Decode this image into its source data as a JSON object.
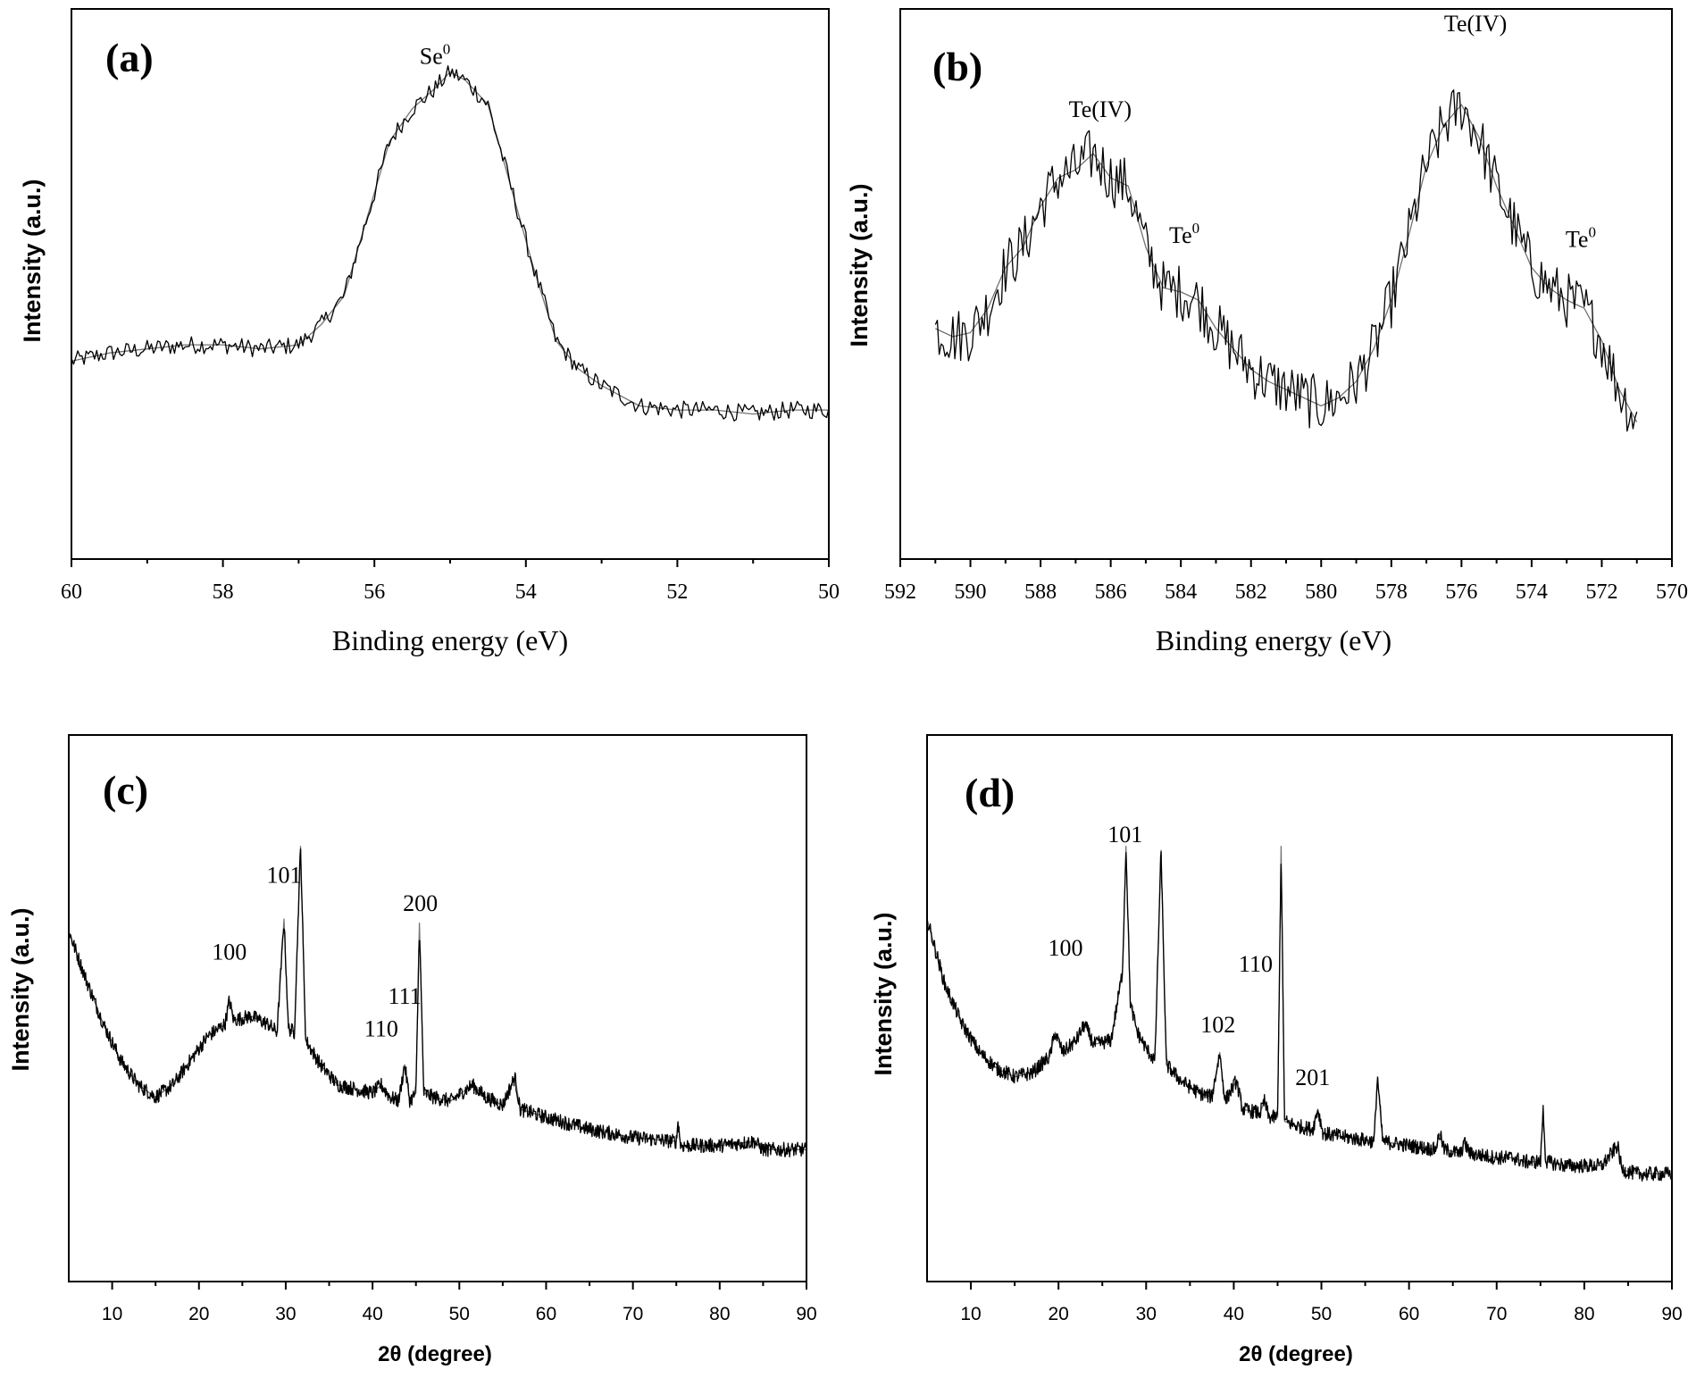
{
  "chart_data": [
    {
      "panel": "(a)",
      "type": "line",
      "xlabel": "Binding energy (eV)",
      "ylabel": "Intensity (a.u.)",
      "xlim": [
        60,
        50
      ],
      "x_reversed": true,
      "ylim": [
        0,
        100
      ],
      "y_ticks_shown": false,
      "x_ticks": [
        60,
        58,
        56,
        54,
        52,
        50
      ],
      "annotations": [
        {
          "base": "Se",
          "sup": "0",
          "x": 55.2,
          "y": 100
        }
      ],
      "series": [
        {
          "x": [
            60,
            59.5,
            59.0,
            58.5,
            58.0,
            57.5,
            57.0,
            56.7,
            56.4,
            56.1,
            55.8,
            55.5,
            55.2,
            55.0,
            54.8,
            54.5,
            54.2,
            53.9,
            53.6,
            53.3,
            53.0,
            52.7,
            52.5,
            52.0,
            51.5,
            51.0,
            50.5,
            50.0
          ],
          "y": [
            27,
            29,
            30,
            31,
            31,
            30,
            31,
            36,
            43,
            62,
            81,
            89,
            94,
            98,
            96,
            90,
            70,
            50,
            32,
            25,
            21,
            18,
            16,
            15,
            15,
            14,
            15,
            15
          ]
        }
      ]
    },
    {
      "panel": "(b)",
      "type": "line",
      "xlabel": "Binding energy (eV)",
      "ylabel": "Intensity (a.u.)",
      "xlim": [
        592,
        570
      ],
      "x_reversed": true,
      "ylim": [
        0,
        100
      ],
      "y_ticks_shown": false,
      "x_ticks": [
        592,
        590,
        588,
        586,
        584,
        582,
        580,
        578,
        576,
        574,
        572,
        570
      ],
      "annotations": [
        {
          "base": "Te(IV)",
          "sup": "",
          "x": 586.3,
          "y": 87
        },
        {
          "base": "Te",
          "sup": "0",
          "x": 583.9,
          "y": 56
        },
        {
          "base": "Te(IV)",
          "sup": "",
          "x": 575.6,
          "y": 108
        },
        {
          "base": "Te",
          "sup": "0",
          "x": 572.6,
          "y": 55
        }
      ],
      "series": [
        {
          "x": [
            591,
            590.5,
            590,
            589.5,
            589,
            588.5,
            588,
            587.5,
            587,
            586.5,
            586,
            585.5,
            585,
            584.5,
            584,
            583.5,
            583,
            582.5,
            582,
            581.5,
            581,
            580.5,
            580,
            579.5,
            579,
            578.5,
            578,
            577.5,
            577,
            576.5,
            576,
            575.5,
            575,
            574.5,
            574,
            573.5,
            573,
            572.5,
            572,
            571.5,
            571
          ],
          "y": [
            35,
            33,
            34,
            40,
            50,
            55,
            65,
            72,
            74,
            78,
            72,
            70,
            55,
            45,
            44,
            42,
            35,
            30,
            25,
            22,
            20,
            18,
            16,
            18,
            22,
            30,
            42,
            58,
            75,
            85,
            90,
            82,
            70,
            60,
            50,
            45,
            42,
            40,
            32,
            20,
            12
          ]
        }
      ]
    },
    {
      "panel": "(c)",
      "type": "line",
      "xlabel": "2θ (degree)",
      "ylabel": "Intensity (a.u.)",
      "xlim": [
        5,
        90
      ],
      "ylim": [
        0,
        100
      ],
      "y_ticks_shown": false,
      "x_ticks": [
        10,
        20,
        30,
        40,
        50,
        60,
        70,
        80,
        90
      ],
      "annotations": [
        {
          "text": "100",
          "x": 23.5,
          "y": 58
        },
        {
          "text": "101",
          "x": 29.8,
          "y": 77
        },
        {
          "text": "110",
          "x": 41.0,
          "y": 39
        },
        {
          "text": "111",
          "x": 43.7,
          "y": 47
        },
        {
          "text": "200",
          "x": 45.5,
          "y": 70
        }
      ],
      "series": [
        {
          "x": [
            5,
            7,
            9,
            11,
            13,
            15,
            17,
            19,
            21,
            23,
            23.5,
            24,
            26,
            28,
            29,
            29.8,
            30.3,
            31,
            31.7,
            32.3,
            34,
            36,
            38,
            40,
            41,
            42,
            43,
            43.7,
            44.3,
            45,
            45.4,
            45.9,
            47,
            49,
            51.5,
            53,
            55,
            56.4,
            57,
            60,
            65,
            70,
            75,
            75.2,
            75.5,
            80,
            84,
            85,
            90
          ],
          "y": [
            65,
            53,
            42,
            33,
            27,
            24,
            27,
            33,
            39,
            42,
            48,
            43,
            44,
            42,
            40,
            68,
            41,
            40,
            86,
            38,
            32,
            27,
            26,
            25,
            27,
            24,
            23,
            32,
            23,
            25,
            67,
            25,
            24,
            23,
            27,
            24,
            22,
            29,
            21,
            19,
            16,
            14,
            13,
            18,
            12,
            12,
            13,
            11,
            11
          ]
        }
      ]
    },
    {
      "panel": "(d)",
      "type": "line",
      "xlabel": "2θ (degree)",
      "ylabel": "Intensity (a.u.)",
      "xlim": [
        5,
        90
      ],
      "ylim": [
        0,
        100
      ],
      "y_ticks_shown": false,
      "x_ticks": [
        10,
        20,
        30,
        40,
        50,
        60,
        70,
        80,
        90
      ],
      "annotations": [
        {
          "text": "100",
          "x": 20.8,
          "y": 59
        },
        {
          "text": "101",
          "x": 27.6,
          "y": 87
        },
        {
          "text": "102",
          "x": 38.2,
          "y": 40
        },
        {
          "text": "110",
          "x": 42.5,
          "y": 55
        },
        {
          "text": "201",
          "x": 49.0,
          "y": 27
        }
      ],
      "series": [
        {
          "x": [
            5,
            7,
            9,
            11,
            13,
            15,
            17,
            19,
            19.6,
            20.5,
            22,
            23,
            24,
            26,
            27.3,
            27.7,
            28.2,
            29,
            30,
            31,
            31.7,
            32.3,
            34,
            36,
            37.5,
            38.4,
            39,
            40.3,
            41,
            43,
            43.5,
            44,
            45,
            45.4,
            45.8,
            47,
            49,
            49.6,
            50.2,
            53,
            56,
            56.4,
            57,
            60,
            63,
            63.5,
            64,
            66,
            66.2,
            67,
            70,
            72,
            73,
            75,
            75.3,
            75.6,
            78,
            82,
            83.8,
            84.3,
            86,
            90
          ],
          "y": [
            68,
            52,
            42,
            35,
            31,
            29,
            30,
            34,
            40,
            35,
            38,
            42,
            37,
            38,
            55,
            86,
            47,
            40,
            36,
            33,
            85,
            32,
            28,
            25,
            24,
            35,
            23,
            28,
            21,
            20,
            23,
            19,
            19,
            86,
            18,
            17,
            16,
            21,
            15,
            14,
            13,
            29,
            13,
            12,
            11,
            15,
            11,
            10,
            13,
            10,
            9,
            9,
            8,
            8,
            21,
            8,
            7,
            7,
            12,
            6,
            5,
            5
          ]
        }
      ]
    }
  ]
}
